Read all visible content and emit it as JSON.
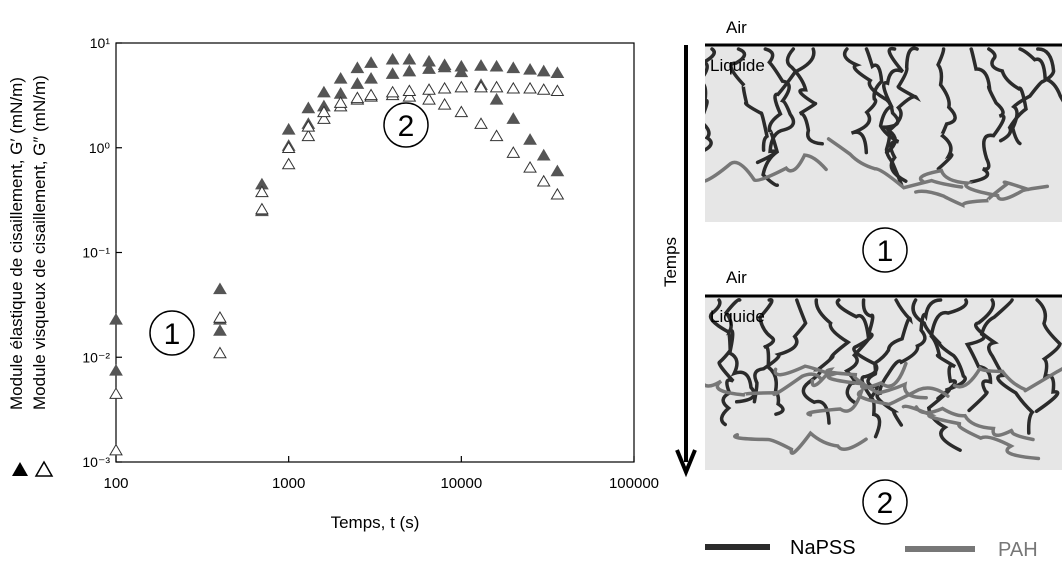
{
  "chart_data": {
    "type": "scatter",
    "xlabel": "Temps, t (s)",
    "xlim": [
      100,
      100000
    ],
    "xticks": [
      100,
      1000,
      10000,
      100000
    ],
    "ylim": [
      0.001,
      10
    ],
    "yticks": [
      {
        "value": 0.001,
        "label": "10⁻³"
      },
      {
        "value": 0.01,
        "label": "10⁻²"
      },
      {
        "value": 0.1,
        "label": "10⁻¹"
      },
      {
        "value": 1,
        "label": "10⁰"
      },
      {
        "value": 10,
        "label": "10¹"
      }
    ],
    "log_x": true,
    "log_y": true,
    "annotations": [
      "1",
      "2"
    ],
    "series": [
      {
        "name": "Module élastique de cisaillement, G′ (mN/m)",
        "color": "#555555",
        "fill": "#555555",
        "x": [
          100,
          100,
          400,
          400,
          400,
          700,
          1000,
          1300,
          1600,
          2000,
          2500,
          3000,
          4000,
          5000,
          6500,
          8000,
          10000,
          13000,
          16000,
          20000,
          25000,
          30000,
          36000,
          700,
          1000,
          1300,
          1600,
          2000,
          2500,
          3000,
          4000,
          5000,
          6500,
          8000,
          10000,
          13000,
          16000,
          20000,
          25000,
          30000,
          36000
        ],
        "values": [
          0.023,
          0.0075,
          0.045,
          0.023,
          0.018,
          0.25,
          1.5,
          2.4,
          3.4,
          4.6,
          5.8,
          6.5,
          7.0,
          7.0,
          6.7,
          6.2,
          5.3,
          4.0,
          2.9,
          1.9,
          1.2,
          0.85,
          0.6,
          0.45,
          1.05,
          1.7,
          2.5,
          3.3,
          4.1,
          4.6,
          5.1,
          5.4,
          5.7,
          5.9,
          6.0,
          6.1,
          6.0,
          5.8,
          5.6,
          5.4,
          5.2
        ]
      },
      {
        "name": "Module visqueux de cisaillement, G″ (mN/m)",
        "color": "#333333",
        "fill": "#ffffff",
        "x": [
          100,
          100,
          400,
          400,
          700,
          1000,
          1300,
          1600,
          2000,
          2500,
          3000,
          4000,
          5000,
          6500,
          8000,
          10000,
          13000,
          16000,
          20000,
          25000,
          30000,
          36000,
          700,
          1000,
          1300,
          1600,
          2000,
          2500,
          3000,
          4000,
          5000,
          6500,
          8000,
          10000,
          13000,
          16000,
          20000,
          25000,
          30000,
          36000
        ],
        "values": [
          0.0045,
          0.0013,
          0.024,
          0.011,
          0.26,
          0.7,
          1.3,
          1.9,
          2.5,
          2.9,
          3.1,
          3.2,
          3.1,
          2.9,
          2.6,
          2.2,
          1.7,
          1.3,
          0.9,
          0.65,
          0.48,
          0.36,
          0.38,
          1.0,
          1.6,
          2.2,
          2.7,
          3.0,
          3.2,
          3.4,
          3.5,
          3.6,
          3.7,
          3.8,
          3.8,
          3.8,
          3.7,
          3.7,
          3.6,
          3.5
        ]
      }
    ]
  },
  "diagram": {
    "time_label": "Temps",
    "panels": [
      {
        "air": "Air",
        "liquid": "Liquide",
        "number": "1"
      },
      {
        "air": "Air",
        "liquid": "Liquide",
        "number": "2"
      }
    ],
    "legend": [
      {
        "name": "NaPSS",
        "color": "#2b2b2b"
      },
      {
        "name": "PAH",
        "color": "#777777"
      }
    ]
  }
}
